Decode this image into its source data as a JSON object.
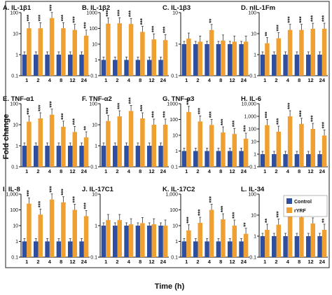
{
  "figure": {
    "ylabel": "Fold change",
    "xlabel": "Time (h)",
    "legend": [
      {
        "label": "Control",
        "color": "#2e4fa0"
      },
      {
        "label": "rYRF",
        "color": "#f0a030"
      }
    ]
  },
  "chart_data": [
    {
      "type": "bar",
      "title": "A. IL-1β1",
      "categories": [
        "1",
        "2",
        "4",
        "8",
        "12",
        "24"
      ],
      "ylim": [
        0.1,
        100
      ],
      "yscale": "log",
      "ticks": [
        {
          "v": 0.1,
          "label": "0.1"
        },
        {
          "v": 1,
          "label": "1"
        },
        {
          "v": 10,
          "label": "10"
        },
        {
          "v": 100,
          "label": "100"
        }
      ],
      "series": [
        {
          "name": "Control",
          "values": [
            1,
            1,
            1,
            1,
            1,
            1
          ]
        },
        {
          "name": "rYRF",
          "values": [
            18,
            18,
            55,
            18,
            15,
            8
          ]
        }
      ],
      "sig": [
        "***",
        "***",
        "***",
        "***",
        "***",
        "***"
      ]
    },
    {
      "type": "bar",
      "title": "B. IL-1β2",
      "categories": [
        "1",
        "2",
        "4",
        "8",
        "12",
        "24"
      ],
      "ylim": [
        0.1,
        1000
      ],
      "yscale": "log",
      "ticks": [
        {
          "v": 0.1,
          "label": "0.1"
        },
        {
          "v": 1,
          "label": "1"
        },
        {
          "v": 10,
          "label": "10"
        },
        {
          "v": 100,
          "label": "100"
        },
        {
          "v": 1000,
          "label": "1000"
        }
      ],
      "series": [
        {
          "name": "Control",
          "values": [
            1,
            1,
            1,
            1,
            1,
            1
          ]
        },
        {
          "name": "rYRF",
          "values": [
            200,
            210,
            190,
            60,
            20,
            18
          ]
        }
      ],
      "sig": [
        "***",
        "***",
        "***",
        "***",
        "***",
        "***"
      ]
    },
    {
      "type": "bar",
      "title": "C. IL-1β3",
      "categories": [
        "1",
        "2",
        "4",
        "8",
        "12",
        "24"
      ],
      "ylim": [
        0.1,
        10
      ],
      "yscale": "log",
      "ticks": [
        {
          "v": 0.1,
          "label": "0.1"
        },
        {
          "v": 1,
          "label": "1"
        },
        {
          "v": 10,
          "label": "10"
        }
      ],
      "series": [
        {
          "name": "Control",
          "values": [
            1,
            1,
            1,
            1,
            1,
            1
          ]
        },
        {
          "name": "rYRF",
          "values": [
            1.5,
            1.2,
            2.8,
            1.3,
            1.2,
            1.2
          ]
        }
      ],
      "sig": [
        "",
        "",
        "**",
        "",
        "",
        ""
      ]
    },
    {
      "type": "bar",
      "title": "D. nIL-1Fm",
      "categories": [
        "1",
        "2",
        "4",
        "8",
        "12",
        "24"
      ],
      "ylim": [
        0.1,
        100
      ],
      "yscale": "log",
      "ticks": [
        {
          "v": 0.1,
          "label": "0.1"
        },
        {
          "v": 1,
          "label": "1"
        },
        {
          "v": 10,
          "label": "10"
        },
        {
          "v": 100,
          "label": "100"
        }
      ],
      "series": [
        {
          "name": "Control",
          "values": [
            1,
            1,
            1,
            1,
            1,
            1
          ]
        },
        {
          "name": "rYRF",
          "values": [
            3.5,
            6,
            15,
            15,
            17,
            17
          ]
        }
      ],
      "sig": [
        "**",
        "***",
        "***",
        "***",
        "***",
        "***"
      ]
    },
    {
      "type": "bar",
      "title": "E. TNF-α1",
      "categories": [
        "1",
        "2",
        "4",
        "8",
        "12",
        "24"
      ],
      "ylim": [
        0.1,
        100
      ],
      "yscale": "log",
      "ticks": [
        {
          "v": 0.1,
          "label": "0.1"
        },
        {
          "v": 1,
          "label": "1"
        },
        {
          "v": 10,
          "label": "10"
        },
        {
          "v": 100,
          "label": "100"
        }
      ],
      "series": [
        {
          "name": "Control",
          "values": [
            1,
            1,
            1,
            1,
            1,
            1
          ]
        },
        {
          "name": "rYRF",
          "values": [
            14,
            20,
            30,
            8,
            4.5,
            2.5
          ]
        }
      ],
      "sig": [
        "***",
        "***",
        "***",
        "***",
        "***",
        "**"
      ]
    },
    {
      "type": "bar",
      "title": "F. TNF-α2",
      "categories": [
        "1",
        "2",
        "4",
        "8",
        "12",
        "24"
      ],
      "ylim": [
        0.1,
        100
      ],
      "yscale": "log",
      "ticks": [
        {
          "v": 0.1,
          "label": "0.1"
        },
        {
          "v": 1,
          "label": "1"
        },
        {
          "v": 10,
          "label": "10"
        },
        {
          "v": 100,
          "label": "100"
        }
      ],
      "series": [
        {
          "name": "Control",
          "values": [
            1,
            1,
            1,
            1,
            1,
            1
          ]
        },
        {
          "name": "rYRF",
          "values": [
            15,
            25,
            45,
            20,
            10,
            10
          ]
        }
      ],
      "sig": [
        "***",
        "***",
        "***",
        "***",
        "***",
        "***"
      ]
    },
    {
      "type": "bar",
      "title": "G. TNF-α3",
      "categories": [
        "1",
        "2",
        "4",
        "8",
        "12",
        "24"
      ],
      "ylim": [
        0.1,
        1000
      ],
      "yscale": "log",
      "ticks": [
        {
          "v": 0.1,
          "label": "0.1"
        },
        {
          "v": 1,
          "label": "1"
        },
        {
          "v": 10,
          "label": "10"
        },
        {
          "v": 100,
          "label": "100"
        },
        {
          "v": 1000,
          "label": "1000"
        }
      ],
      "series": [
        {
          "name": "Control",
          "values": [
            1,
            1,
            1,
            1,
            1,
            1
          ]
        },
        {
          "name": "rYRF",
          "values": [
            300,
            75,
            45,
            15,
            12,
            6
          ]
        }
      ],
      "sig": [
        "***",
        "***",
        "***",
        "***",
        "***",
        "***"
      ]
    },
    {
      "type": "bar",
      "title": "H. IL-6",
      "categories": [
        "1",
        "2",
        "4",
        "8",
        "12",
        "24"
      ],
      "ylim": [
        0.1,
        10000
      ],
      "yscale": "log",
      "ticks": [
        {
          "v": 0.1,
          "label": "0.1"
        },
        {
          "v": 1,
          "label": "1"
        },
        {
          "v": 10,
          "label": "10"
        },
        {
          "v": 100,
          "label": "100"
        },
        {
          "v": 1000,
          "label": "1,000"
        },
        {
          "v": 10000,
          "label": "10,000"
        }
      ],
      "series": [
        {
          "name": "Control",
          "values": [
            1,
            1,
            1,
            1,
            1,
            1
          ]
        },
        {
          "name": "rYRF",
          "values": [
            200,
            60,
            1000,
            250,
            100,
            30
          ]
        }
      ],
      "sig": [
        "***",
        "***",
        "***",
        "***",
        "***",
        "***"
      ]
    },
    {
      "type": "bar",
      "title": "I. IL-8",
      "categories": [
        "1",
        "2",
        "4",
        "8",
        "12",
        "24"
      ],
      "ylim": [
        0.1,
        1000
      ],
      "yscale": "log",
      "ticks": [
        {
          "v": 0.1,
          "label": "0.1"
        },
        {
          "v": 1,
          "label": "1"
        },
        {
          "v": 10,
          "label": "10"
        },
        {
          "v": 100,
          "label": "100"
        },
        {
          "v": 1000,
          "label": "1,000"
        }
      ],
      "series": [
        {
          "name": "Control",
          "values": [
            1,
            1,
            1,
            1,
            1,
            1
          ]
        },
        {
          "name": "rYRF",
          "values": [
            250,
            50,
            450,
            300,
            100,
            40
          ]
        }
      ],
      "sig": [
        "***",
        "***",
        "***",
        "***",
        "***",
        "***"
      ]
    },
    {
      "type": "bar",
      "title": "J. IL-17C1",
      "categories": [
        "1",
        "2",
        "4",
        "8",
        "12",
        "24"
      ],
      "ylim": [
        0.1,
        10
      ],
      "yscale": "log",
      "ticks": [
        {
          "v": 0.1,
          "label": "0.1"
        },
        {
          "v": 1,
          "label": "1"
        },
        {
          "v": 10,
          "label": "10"
        }
      ],
      "series": [
        {
          "name": "Control",
          "values": [
            1,
            1,
            1,
            1,
            1,
            1
          ]
        },
        {
          "name": "rYRF",
          "values": [
            1.5,
            1.5,
            1.1,
            1.2,
            1.1,
            1.0
          ]
        }
      ],
      "sig": [
        "",
        "",
        "",
        "",
        "",
        ""
      ]
    },
    {
      "type": "bar",
      "title": "K. IL-17C2",
      "categories": [
        "1",
        "2",
        "4",
        "8",
        "12",
        "24"
      ],
      "ylim": [
        0.1,
        1000
      ],
      "yscale": "log",
      "ticks": [
        {
          "v": 0.1,
          "label": "0.1"
        },
        {
          "v": 1,
          "label": "1"
        },
        {
          "v": 10,
          "label": "10"
        },
        {
          "v": 100,
          "label": "100"
        },
        {
          "v": 1000,
          "label": "1,000"
        }
      ],
      "series": [
        {
          "name": "Control",
          "values": [
            1,
            1,
            1,
            1,
            1,
            1
          ]
        },
        {
          "name": "rYRF",
          "values": [
            5,
            15,
            100,
            25,
            10,
            3
          ]
        }
      ],
      "sig": [
        "***",
        "***",
        "***",
        "***",
        "***",
        "**"
      ]
    },
    {
      "type": "bar",
      "title": "L. IL-34",
      "categories": [
        "1",
        "2",
        "4",
        "8",
        "12",
        "24"
      ],
      "ylim": [
        0.1,
        100
      ],
      "yscale": "log",
      "ticks": [
        {
          "v": 0.1,
          "label": "0.1"
        },
        {
          "v": 1,
          "label": "1"
        },
        {
          "v": 10,
          "label": "10"
        },
        {
          "v": 100,
          "label": "100"
        }
      ],
      "series": [
        {
          "name": "Control",
          "values": [
            1,
            1,
            1,
            1,
            1,
            1
          ]
        },
        {
          "name": "rYRF",
          "values": [
            2,
            3.5,
            15,
            8,
            4,
            2
          ]
        }
      ],
      "sig": [
        "**",
        "***",
        "***",
        "***",
        "***",
        "**"
      ]
    }
  ]
}
